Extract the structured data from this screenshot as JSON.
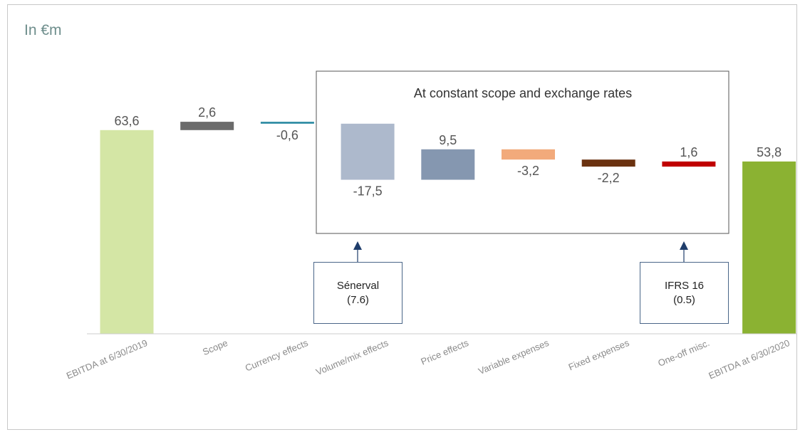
{
  "unit_label": "In €m",
  "box_title": "At constant scope and exchange rates",
  "callouts": [
    {
      "name": "Sénerval",
      "value": "(7.6)"
    },
    {
      "name": "IFRS 16",
      "value": "(0.5)"
    }
  ],
  "chart_data": {
    "type": "bar",
    "subtype": "waterfall",
    "title": "",
    "xlabel": "",
    "ylabel": "",
    "categories": [
      "EBITDA at 6/30/2019",
      "Scope",
      "Currency effects",
      "Volume/mix effects",
      "Price effects",
      "Variable expenses",
      "Fixed expenses",
      "One-off misc.",
      "EBITDA at 6/30/2020"
    ],
    "values": [
      63.6,
      2.6,
      -0.6,
      -17.5,
      9.5,
      -3.2,
      -2.2,
      1.6,
      53.8
    ],
    "value_labels": [
      "63,6",
      "2,6",
      "-0,6",
      "-17,5",
      "9,5",
      "-3,2",
      "-2,2",
      "1,6",
      "53,8"
    ],
    "bar_kinds": [
      "total",
      "delta",
      "delta",
      "delta",
      "delta",
      "delta",
      "delta",
      "delta",
      "total"
    ],
    "colors": [
      "#d4e6a5",
      "#6b6b6b",
      "#2e8ca3",
      "#adb9cc",
      "#8597b0",
      "#f2aa7b",
      "#6b3210",
      "#c00000",
      "#8bb232"
    ],
    "label_color": "#555555",
    "grid": false,
    "legend": "none"
  }
}
